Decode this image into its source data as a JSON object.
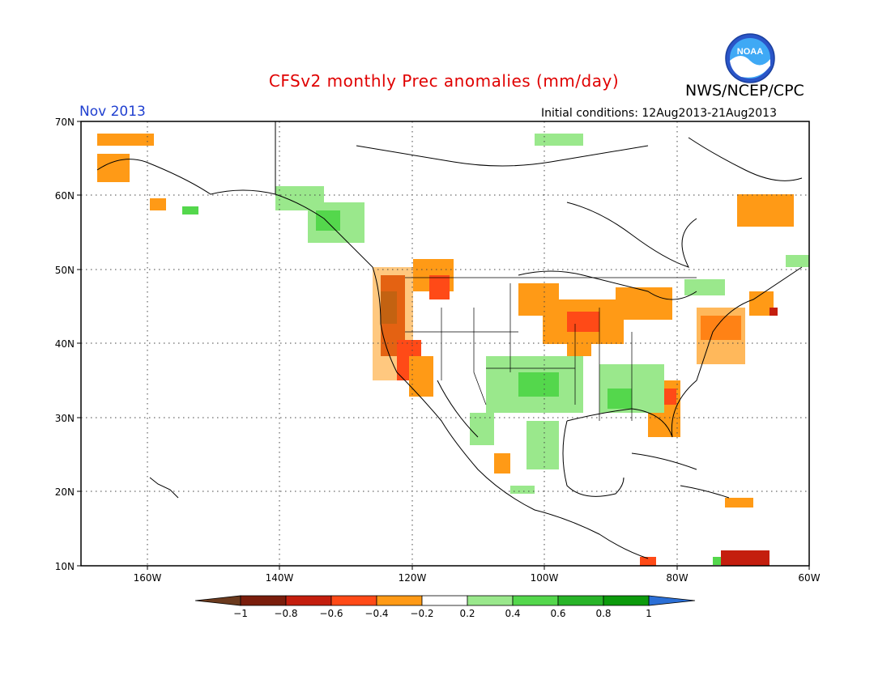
{
  "header": {
    "title": "CFSv2 monthly Prec anomalies (mm/day)",
    "agency": "NWS/NCEP/CPC",
    "month": "Nov 2013",
    "initial_conditions": "Initial conditions: 12Aug2013-21Aug2013",
    "logo_text": "NOAA"
  },
  "axes": {
    "lat_labels": [
      "70N",
      "60N",
      "50N",
      "40N",
      "30N",
      "20N",
      "10N"
    ],
    "lon_labels": [
      "160W",
      "140W",
      "120W",
      "100W",
      "80W",
      "60W"
    ],
    "lat_range": [
      10,
      70
    ],
    "lon_range": [
      -170,
      -60
    ]
  },
  "colorbar": {
    "ticks": [
      "−1",
      "−0.8",
      "−0.6",
      "−0.4",
      "−0.2",
      "0.2",
      "0.4",
      "0.6",
      "0.8",
      "1"
    ],
    "colors": [
      "#7a1d0c",
      "#c41e0e",
      "#ff4a17",
      "#ff9a16",
      "#ffffff",
      "#9ae88c",
      "#54d74c",
      "#28b428",
      "#0c9a0c"
    ],
    "under_color": "#6b3a1e",
    "over_color": "#2b6fd6"
  },
  "anomaly_regions": [
    {
      "name": "pacific-northwest-dry",
      "color": "#c41e0e"
    },
    {
      "name": "california-dry",
      "color": "#ff9a16"
    },
    {
      "name": "great-lakes-dry",
      "color": "#ff9a16"
    },
    {
      "name": "southeast-dry",
      "color": "#ff9a16"
    },
    {
      "name": "texas-wet",
      "color": "#9ae88c"
    },
    {
      "name": "alaska-panhandle-wet",
      "color": "#54d74c"
    }
  ]
}
